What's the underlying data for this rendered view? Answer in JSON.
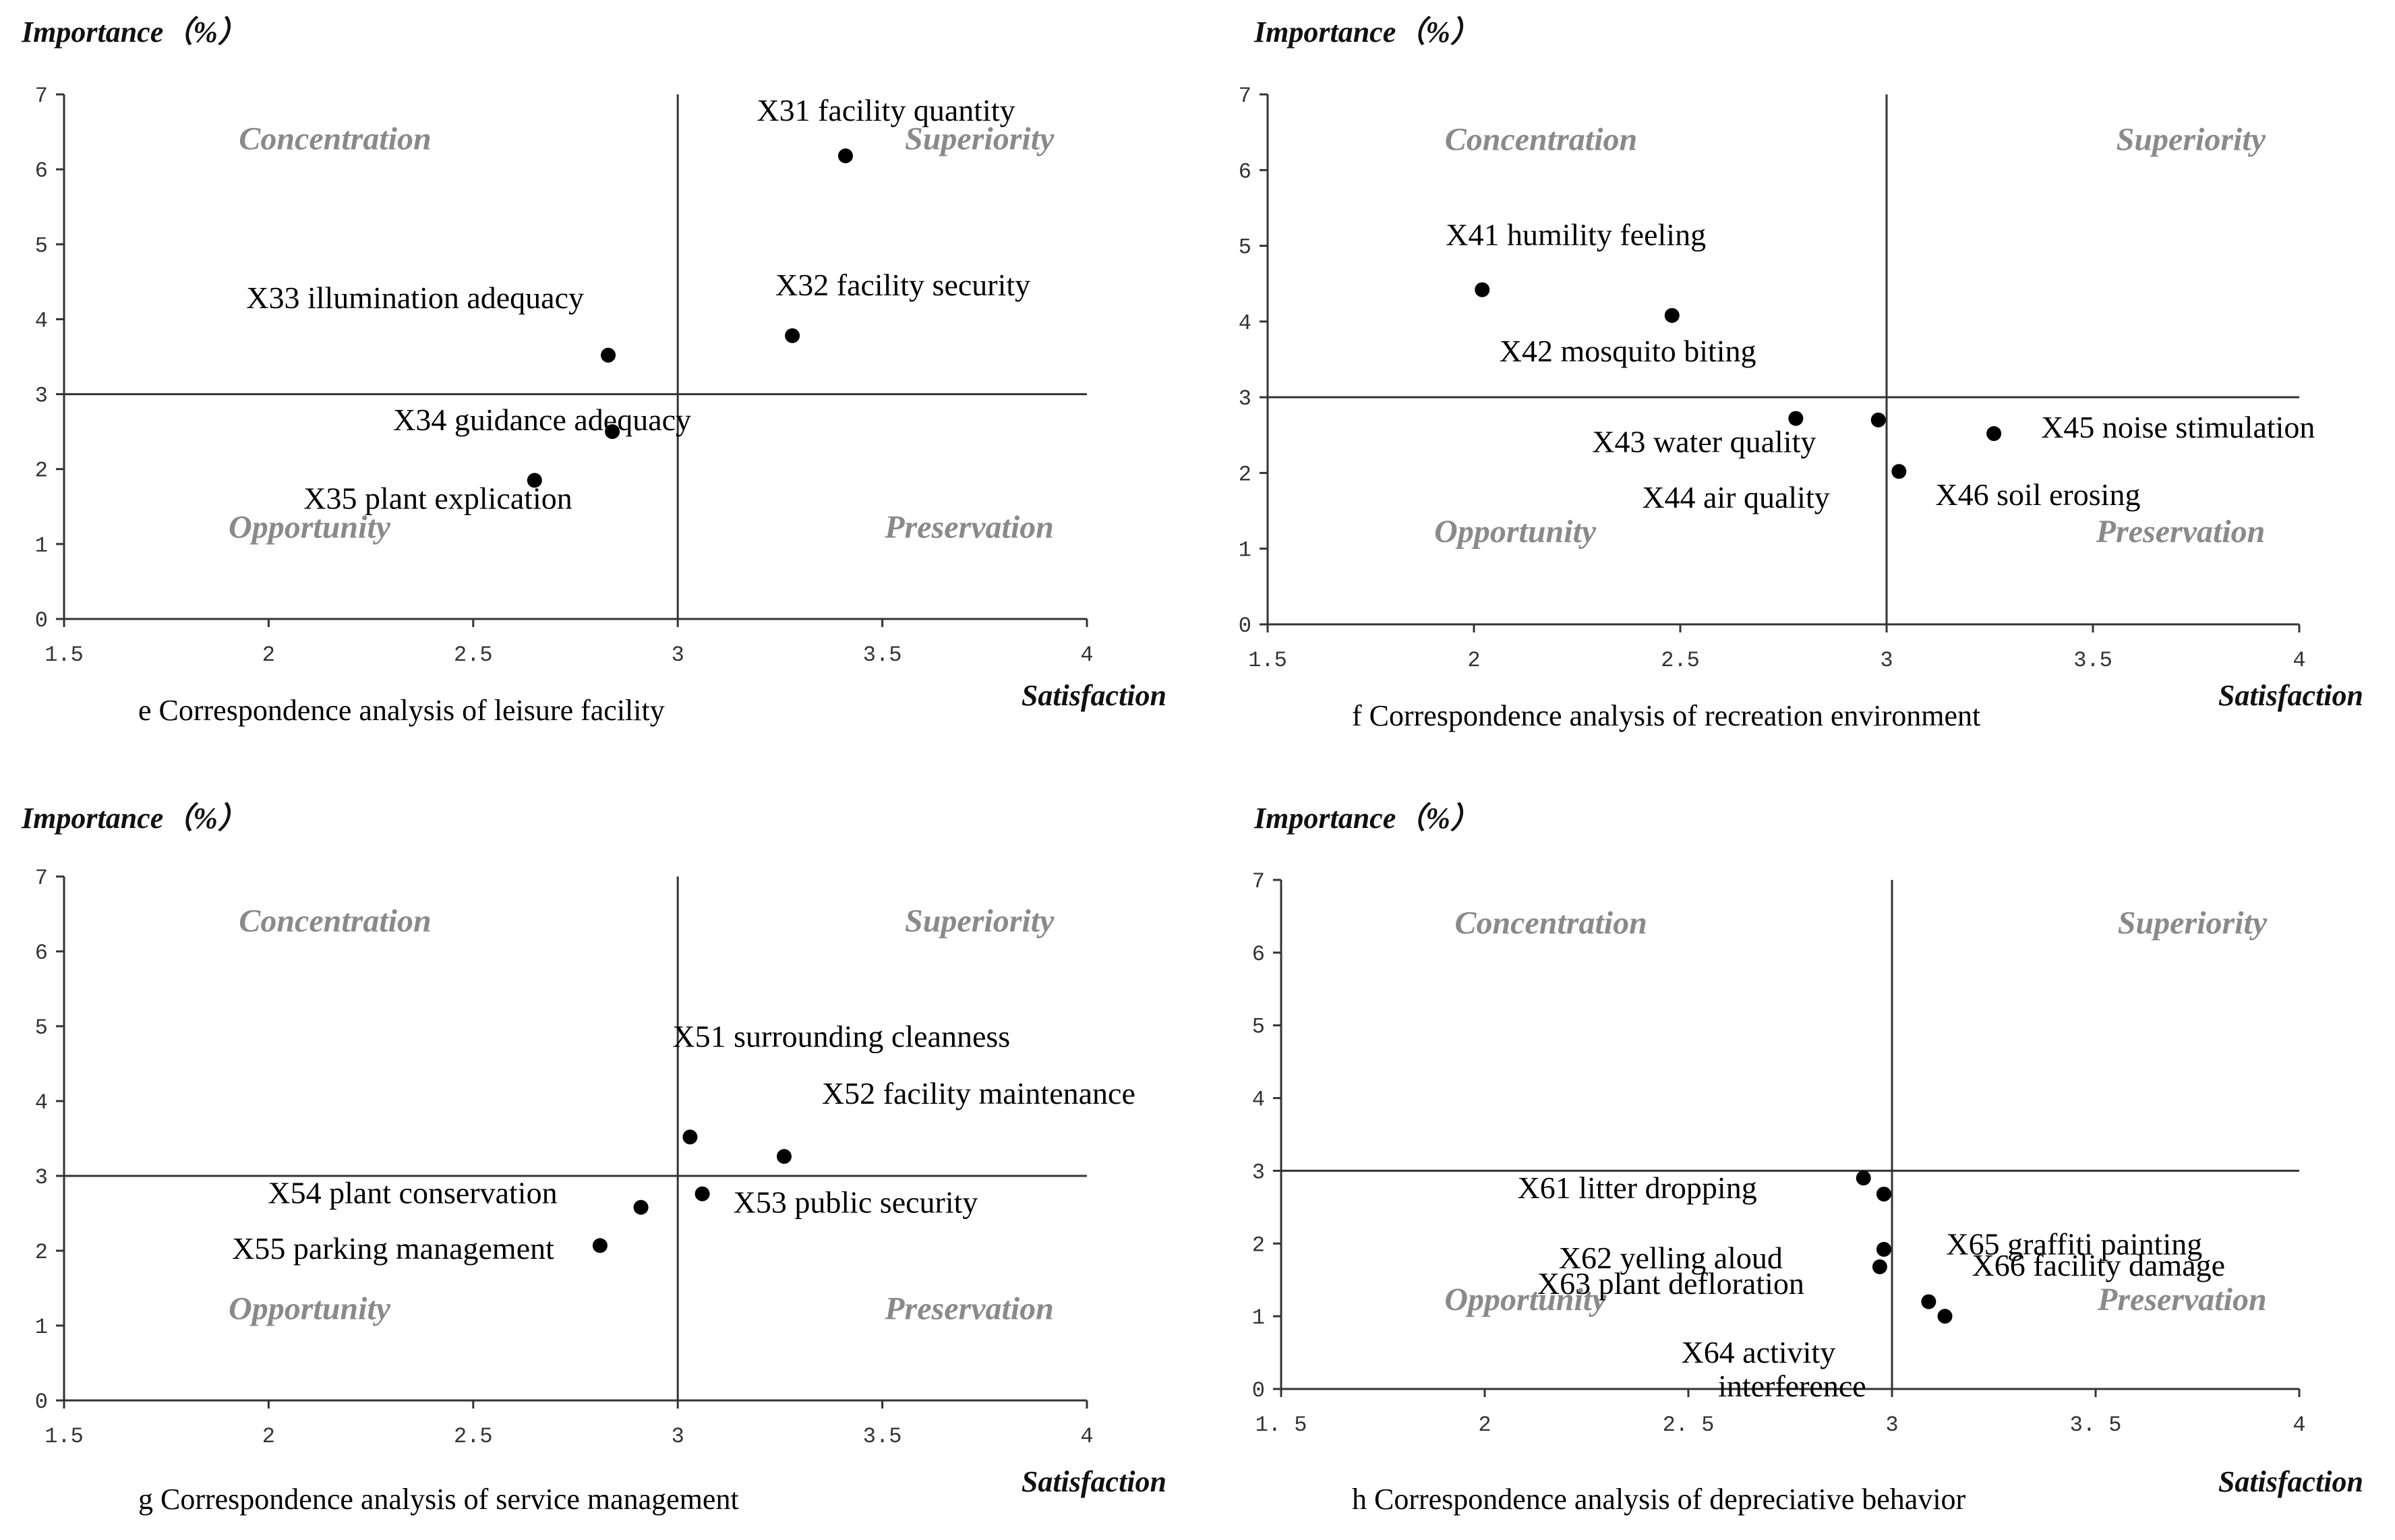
{
  "chart_data": [
    {
      "type": "scatter",
      "panel_id": "e",
      "caption": "e Correspondence analysis of leisure facility",
      "ylabel": "Importance（%）",
      "xlabel": "Satisfaction",
      "xlim": [
        1.5,
        4
      ],
      "ylim": [
        0,
        7
      ],
      "x_ticks": [
        "1.5",
        "2",
        "2.5",
        "3",
        "3.5",
        "4"
      ],
      "y_ticks": [
        "0",
        "1",
        "2",
        "3",
        "4",
        "5",
        "6",
        "7"
      ],
      "divider_x": 3,
      "divider_y": 3,
      "quadrants": {
        "top_left": "Concentration",
        "top_right": "Superiority",
        "bottom_left": "Opportunity",
        "bottom_right": "Preservation"
      },
      "points": [
        {
          "label": "X31 facility quantity",
          "x": 3.41,
          "y": 6.18
        },
        {
          "label": "X32 facility security",
          "x": 3.28,
          "y": 3.78
        },
        {
          "label": "X33 illumination adequacy",
          "x": 2.83,
          "y": 3.52
        },
        {
          "label": "X34 guidance adequacy",
          "x": 2.84,
          "y": 2.5
        },
        {
          "label": "X35 plant explication",
          "x": 2.65,
          "y": 1.85
        }
      ]
    },
    {
      "type": "scatter",
      "panel_id": "f",
      "caption": "f Correspondence analysis of recreation environment",
      "ylabel": "Importance（%）",
      "xlabel": "Satisfaction",
      "xlim": [
        1.5,
        4
      ],
      "ylim": [
        0,
        7
      ],
      "x_ticks": [
        "1.5",
        "2",
        "2.5",
        "3",
        "3.5",
        "4"
      ],
      "y_ticks": [
        "0",
        "1",
        "2",
        "3",
        "4",
        "5",
        "6",
        "7"
      ],
      "divider_x": 3,
      "divider_y": 3,
      "quadrants": {
        "top_left": "Concentration",
        "top_right": "Superiority",
        "bottom_left": "Opportunity",
        "bottom_right": "Preservation"
      },
      "points": [
        {
          "label": "X41 humility feeling",
          "x": 2.02,
          "y": 4.42
        },
        {
          "label": "X42 mosquito biting",
          "x": 2.48,
          "y": 4.08
        },
        {
          "label": "X43 water quality",
          "x": 2.78,
          "y": 2.72
        },
        {
          "label": "X44 air quality",
          "x": 2.98,
          "y": 2.7
        },
        {
          "label": "X45 noise stimulation",
          "x": 3.26,
          "y": 2.52
        },
        {
          "label": "X46 soil erosing",
          "x": 3.03,
          "y": 2.02
        }
      ]
    },
    {
      "type": "scatter",
      "panel_id": "g",
      "caption": "g Correspondence analysis of service management",
      "ylabel": "Importance（%）",
      "xlabel": "Satisfaction",
      "xlim": [
        1.5,
        4
      ],
      "ylim": [
        0,
        7
      ],
      "x_ticks": [
        "1.5",
        "2",
        "2.5",
        "3",
        "3.5",
        "4"
      ],
      "y_ticks": [
        "0",
        "1",
        "2",
        "3",
        "4",
        "5",
        "6",
        "7"
      ],
      "divider_x": 3,
      "divider_y": 3,
      "quadrants": {
        "top_left": "Concentration",
        "top_right": "Superiority",
        "bottom_left": "Opportunity",
        "bottom_right": "Preservation"
      },
      "points": [
        {
          "label": "X51 surrounding cleanness",
          "x": 3.03,
          "y": 3.52
        },
        {
          "label": "X52 facility maintenance",
          "x": 3.26,
          "y": 3.26
        },
        {
          "label": "X53 public security",
          "x": 3.06,
          "y": 2.76
        },
        {
          "label": "X54 plant conservation",
          "x": 2.91,
          "y": 2.58
        },
        {
          "label": "X55 parking management",
          "x": 2.81,
          "y": 2.07
        }
      ]
    },
    {
      "type": "scatter",
      "panel_id": "h",
      "caption": "h Correspondence analysis of depreciative behavior",
      "ylabel": "Importance（%）",
      "xlabel": "Satisfaction",
      "xlim": [
        1.5,
        4
      ],
      "ylim": [
        0,
        7
      ],
      "x_ticks": [
        "1. 5",
        "2",
        "2. 5",
        "3",
        "3. 5",
        "4"
      ],
      "y_ticks": [
        "0",
        "1",
        "2",
        "3",
        "4",
        "5",
        "6",
        "7"
      ],
      "divider_x": 3,
      "divider_y": 3,
      "quadrants": {
        "top_left": "Concentration",
        "top_right": "Superiority",
        "bottom_left": "Opportunity",
        "bottom_right": "Preservation"
      },
      "points": [
        {
          "label": "X61 litter dropping",
          "x": 2.93,
          "y": 2.9
        },
        {
          "label": "X62 yelling aloud",
          "x": 2.98,
          "y": 2.68
        },
        {
          "label": "X63 plant defloration",
          "x": 2.98,
          "y": 1.92
        },
        {
          "label": "X64 activity interference",
          "x": 2.97,
          "y": 1.68
        },
        {
          "label": "X65 graffiti painting",
          "x": 3.09,
          "y": 1.2
        },
        {
          "label": "X66 facility damage",
          "x": 3.13,
          "y": 1.0
        }
      ]
    }
  ]
}
